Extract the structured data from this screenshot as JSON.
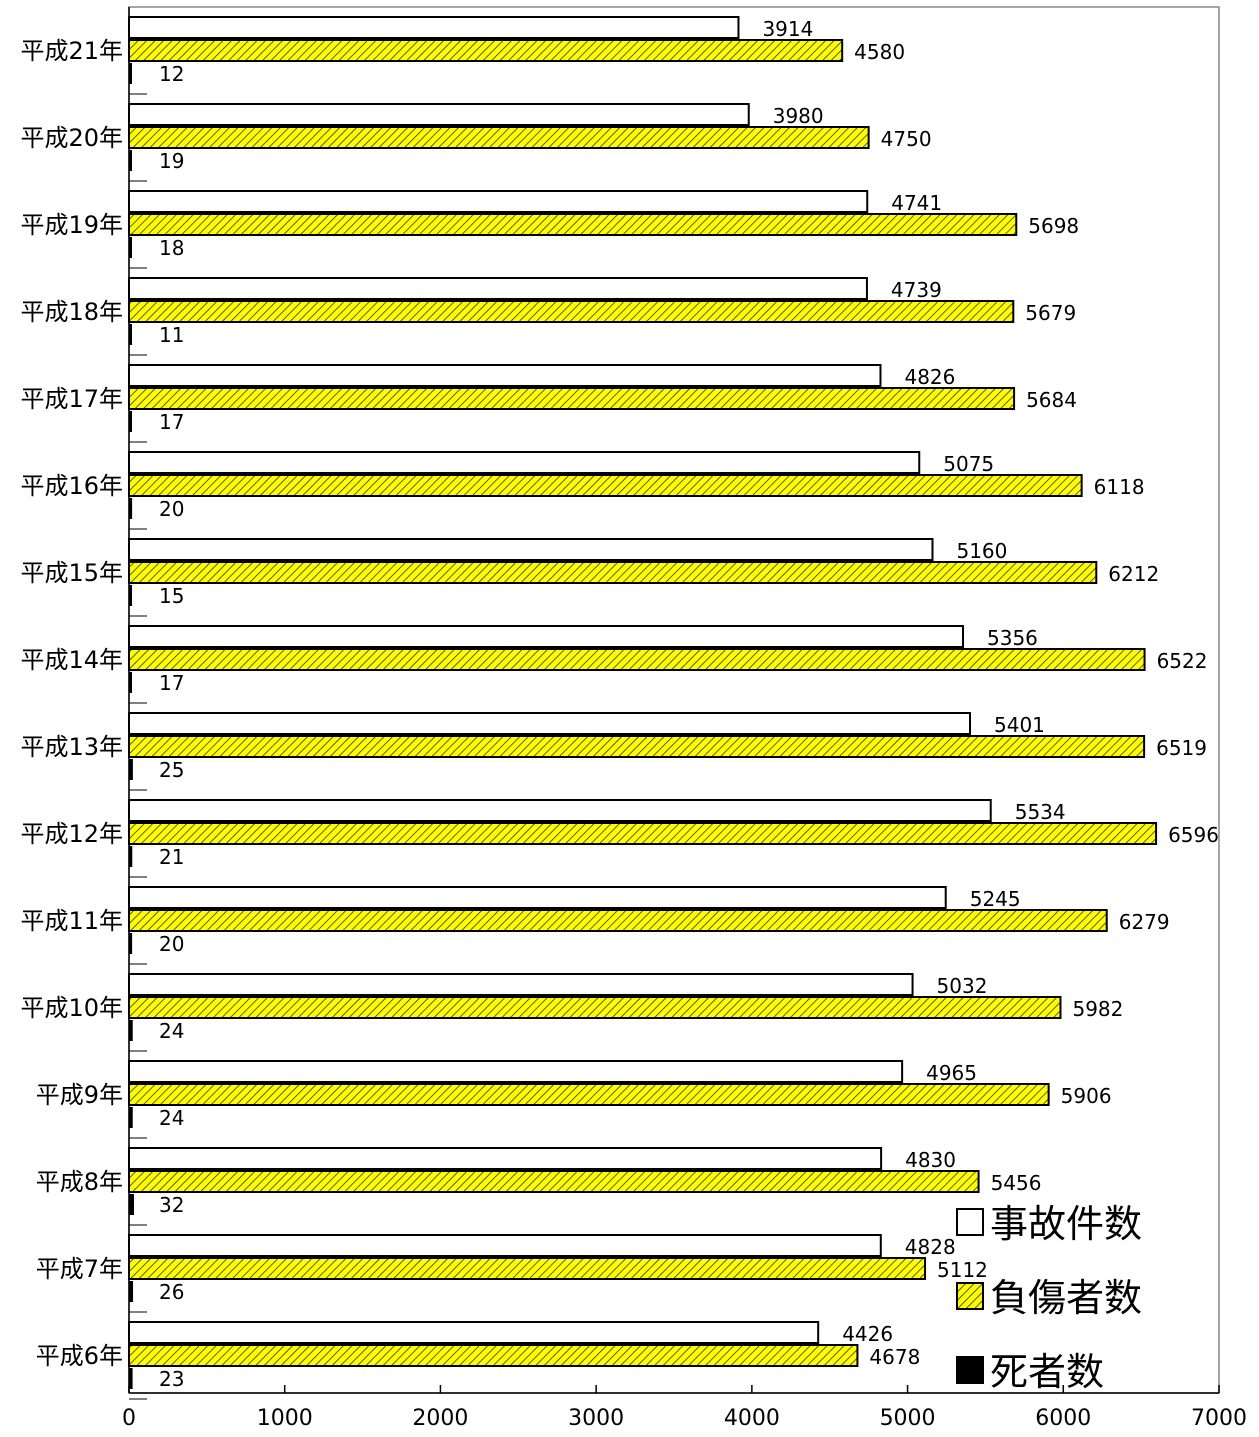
{
  "chart_data": {
    "type": "bar",
    "orientation": "horizontal",
    "categories": [
      "平成21年",
      "平成20年",
      "平成19年",
      "平成18年",
      "平成17年",
      "平成16年",
      "平成15年",
      "平成14年",
      "平成13年",
      "平成12年",
      "平成11年",
      "平成10年",
      "平成9年",
      "平成8年",
      "平成7年",
      "平成6年"
    ],
    "series": [
      {
        "name": "事故件数",
        "color": "#ffffff",
        "pattern": "none",
        "values": [
          3914,
          3980,
          4741,
          4739,
          4826,
          5075,
          5160,
          5356,
          5401,
          5534,
          5245,
          5032,
          4965,
          4830,
          4828,
          4426
        ]
      },
      {
        "name": "負傷者数",
        "color": "#ffff00",
        "pattern": "hatch",
        "values": [
          4580,
          4750,
          5698,
          5679,
          5684,
          6118,
          6212,
          6522,
          6519,
          6596,
          6279,
          5982,
          5906,
          5456,
          5112,
          4678
        ]
      },
      {
        "name": "死者数",
        "color": "#000000",
        "pattern": "none",
        "values": [
          12,
          19,
          18,
          11,
          17,
          20,
          15,
          17,
          25,
          21,
          20,
          24,
          24,
          32,
          26,
          23
        ]
      }
    ],
    "xlim": [
      0,
      7000
    ],
    "xticks": [
      "0",
      "1000",
      "2000",
      "3000",
      "4000",
      "5000",
      "6000",
      "7000"
    ],
    "legend_position": "bottom-right",
    "data_labels": true
  }
}
